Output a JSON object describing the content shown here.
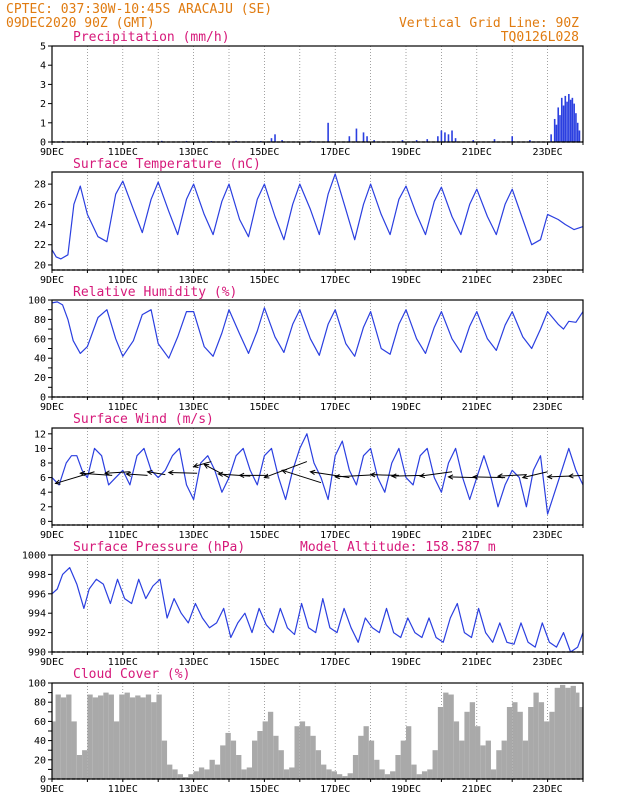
{
  "header": {
    "line1": "CPTEC:  037:30W-10:45S  ARACAJU (SE)",
    "line2": "09DEC2020 90Z (GMT)",
    "grid_note": "Vertical Grid Line: 90Z",
    "run_id": "TQ0126L028"
  },
  "colors": {
    "header": "#e07b10",
    "panel_title": "#d6197a",
    "series": "#2b3fe0",
    "wind_arrow": "#000000",
    "cloud_fill": "#a9a9a9"
  },
  "chart_data": [
    {
      "id": "precip",
      "type": "bar",
      "title": "Precipitation (mm/h)",
      "ylim": [
        0,
        5
      ],
      "yticks": [
        0,
        1,
        2,
        3,
        4,
        5
      ],
      "x_start": 0,
      "x_end": 15,
      "x_tick_days": [
        0,
        2,
        4,
        6,
        8,
        10,
        12,
        14
      ],
      "x_tick_labels": [
        "9DEC",
        "11DEC",
        "13DEC",
        "15DEC",
        "17DEC",
        "19DEC",
        "21DEC",
        "23DEC"
      ],
      "bars": [
        [
          0.3,
          0.05
        ],
        [
          0.9,
          0.04
        ],
        [
          1.6,
          0.05
        ],
        [
          2.4,
          0.04
        ],
        [
          3.1,
          0.06
        ],
        [
          3.8,
          0.05
        ],
        [
          4.5,
          0.05
        ],
        [
          5.2,
          0.06
        ],
        [
          5.9,
          0.05
        ],
        [
          6.2,
          0.2
        ],
        [
          6.3,
          0.4
        ],
        [
          6.5,
          0.1
        ],
        [
          7.3,
          0.06
        ],
        [
          7.8,
          1.0
        ],
        [
          8.4,
          0.3
        ],
        [
          8.6,
          0.7
        ],
        [
          8.8,
          0.5
        ],
        [
          8.9,
          0.3
        ],
        [
          9.1,
          0.1
        ],
        [
          9.9,
          0.1
        ],
        [
          10.3,
          0.1
        ],
        [
          10.6,
          0.15
        ],
        [
          10.9,
          0.3
        ],
        [
          11.0,
          0.6
        ],
        [
          11.1,
          0.5
        ],
        [
          11.2,
          0.4
        ],
        [
          11.3,
          0.6
        ],
        [
          11.4,
          0.2
        ],
        [
          11.9,
          0.1
        ],
        [
          12.5,
          0.15
        ],
        [
          13.0,
          0.3
        ],
        [
          13.5,
          0.1
        ],
        [
          14.1,
          0.4
        ],
        [
          14.2,
          1.2
        ],
        [
          14.25,
          0.9
        ],
        [
          14.3,
          1.8
        ],
        [
          14.35,
          1.4
        ],
        [
          14.4,
          2.3
        ],
        [
          14.45,
          1.9
        ],
        [
          14.5,
          2.4
        ],
        [
          14.55,
          2.1
        ],
        [
          14.6,
          2.5
        ],
        [
          14.65,
          2.2
        ],
        [
          14.7,
          2.3
        ],
        [
          14.75,
          2.0
        ],
        [
          14.8,
          1.5
        ],
        [
          14.85,
          1.0
        ],
        [
          14.9,
          0.6
        ]
      ]
    },
    {
      "id": "temp",
      "type": "line",
      "title": "Surface Temperature (nC)",
      "ylim": [
        19.5,
        29.2
      ],
      "yticks": [
        20,
        22,
        24,
        26,
        28
      ],
      "x_start": 0,
      "x_end": 15,
      "x_tick_days": [
        0,
        2,
        4,
        6,
        8,
        10,
        12,
        14
      ],
      "x_tick_labels": [
        "9DEC",
        "11DEC",
        "13DEC",
        "15DEC",
        "17DEC",
        "19DEC",
        "21DEC",
        "23DEC"
      ],
      "x": [
        0,
        0.12,
        0.25,
        0.45,
        0.62,
        0.8,
        1.0,
        1.3,
        1.55,
        1.8,
        2.0,
        2.3,
        2.55,
        2.8,
        3.0,
        3.3,
        3.55,
        3.8,
        4.0,
        4.3,
        4.55,
        4.8,
        5.0,
        5.3,
        5.55,
        5.8,
        6.0,
        6.3,
        6.55,
        6.8,
        7.0,
        7.3,
        7.55,
        7.8,
        8.0,
        8.3,
        8.55,
        8.8,
        9.0,
        9.3,
        9.55,
        9.8,
        10.0,
        10.3,
        10.55,
        10.8,
        11.0,
        11.3,
        11.55,
        11.8,
        12.0,
        12.3,
        12.55,
        12.8,
        13.0,
        13.3,
        13.55,
        13.8,
        14.0,
        14.3,
        14.5,
        14.75,
        15.0
      ],
      "y": [
        21.5,
        20.8,
        20.6,
        21.0,
        26.0,
        27.8,
        25.0,
        22.8,
        22.3,
        27.0,
        28.3,
        25.5,
        23.2,
        26.5,
        28.2,
        25.3,
        23.0,
        26.5,
        28.0,
        25.0,
        23.0,
        26.3,
        28.0,
        24.5,
        22.8,
        26.5,
        28.0,
        24.8,
        22.5,
        26.0,
        28.0,
        25.5,
        23.0,
        27.0,
        29.0,
        25.5,
        22.5,
        26.0,
        28.0,
        25.0,
        23.0,
        26.5,
        27.8,
        25.0,
        23.0,
        26.3,
        27.7,
        24.8,
        23.0,
        26.0,
        27.5,
        24.8,
        23.0,
        26.0,
        27.5,
        24.5,
        22.0,
        22.5,
        25.0,
        24.5,
        24.0,
        23.5,
        23.8
      ]
    },
    {
      "id": "rh",
      "type": "line",
      "title": "Relative Humidity (%)",
      "ylim": [
        0,
        100
      ],
      "yticks": [
        0,
        10,
        20,
        30,
        40,
        50,
        60,
        70,
        80,
        90,
        100
      ],
      "ytick_labels_shown": [
        0,
        20,
        40,
        60,
        80,
        100
      ],
      "x_start": 0,
      "x_end": 15,
      "x_tick_days": [
        0,
        2,
        4,
        6,
        8,
        10,
        12,
        14
      ],
      "x_tick_labels": [
        "9DEC",
        "11DEC",
        "13DEC",
        "15DEC",
        "17DEC",
        "19DEC",
        "21DEC",
        "23DEC"
      ],
      "x": [
        0,
        0.15,
        0.3,
        0.45,
        0.6,
        0.8,
        1.0,
        1.3,
        1.55,
        1.8,
        2.0,
        2.3,
        2.55,
        2.8,
        3.0,
        3.3,
        3.55,
        3.8,
        4.0,
        4.3,
        4.55,
        4.8,
        5.0,
        5.3,
        5.55,
        5.8,
        6.0,
        6.3,
        6.55,
        6.8,
        7.0,
        7.3,
        7.55,
        7.8,
        8.0,
        8.3,
        8.55,
        8.8,
        9.0,
        9.3,
        9.55,
        9.8,
        10.0,
        10.3,
        10.55,
        10.8,
        11.0,
        11.3,
        11.55,
        11.8,
        12.0,
        12.3,
        12.55,
        12.8,
        13.0,
        13.3,
        13.55,
        13.8,
        14.0,
        14.3,
        14.45,
        14.6,
        14.8,
        15.0
      ],
      "y": [
        97,
        98,
        95,
        80,
        58,
        45,
        52,
        82,
        90,
        60,
        42,
        58,
        85,
        90,
        55,
        40,
        62,
        88,
        88,
        52,
        42,
        66,
        90,
        65,
        45,
        68,
        92,
        62,
        46,
        75,
        90,
        60,
        43,
        75,
        90,
        55,
        42,
        72,
        88,
        50,
        44,
        75,
        90,
        60,
        45,
        72,
        88,
        60,
        46,
        73,
        88,
        60,
        48,
        74,
        88,
        62,
        50,
        70,
        88,
        75,
        70,
        78,
        77,
        88
      ]
    },
    {
      "id": "wind",
      "type": "line",
      "title": "Surface Wind (m/s)",
      "ylim": [
        -0.5,
        12.8
      ],
      "yticks": [
        0,
        2,
        4,
        6,
        8,
        10,
        12
      ],
      "x_start": 0,
      "x_end": 15,
      "x_tick_days": [
        0,
        2,
        4,
        6,
        8,
        10,
        12,
        14
      ],
      "x_tick_labels": [
        "9DEC",
        "11DEC",
        "13DEC",
        "15DEC",
        "17DEC",
        "19DEC",
        "21DEC",
        "23DEC"
      ],
      "x": [
        0,
        0.2,
        0.4,
        0.55,
        0.7,
        0.85,
        1.0,
        1.2,
        1.4,
        1.6,
        1.8,
        2.0,
        2.2,
        2.4,
        2.6,
        2.8,
        3.0,
        3.2,
        3.4,
        3.6,
        3.8,
        4.0,
        4.2,
        4.4,
        4.6,
        4.8,
        5.0,
        5.2,
        5.4,
        5.6,
        5.8,
        6.0,
        6.2,
        6.4,
        6.6,
        6.8,
        7.0,
        7.2,
        7.4,
        7.6,
        7.8,
        8.0,
        8.2,
        8.4,
        8.6,
        8.8,
        9.0,
        9.2,
        9.4,
        9.6,
        9.8,
        10.0,
        10.2,
        10.4,
        10.6,
        10.8,
        11.0,
        11.2,
        11.4,
        11.6,
        11.8,
        12.0,
        12.2,
        12.4,
        12.6,
        12.8,
        13.0,
        13.2,
        13.4,
        13.6,
        13.8,
        14.0,
        14.2,
        14.4,
        14.6,
        14.8,
        15.0
      ],
      "y": [
        6,
        5,
        8,
        9,
        9,
        7,
        6,
        10,
        9,
        5,
        6,
        7,
        5,
        9,
        10,
        7,
        6,
        7,
        9,
        10,
        5,
        3,
        8,
        9,
        7,
        4,
        6,
        9,
        10,
        7,
        5,
        9,
        10,
        6,
        3,
        7,
        10,
        12,
        8,
        6,
        3,
        9,
        11,
        7,
        5,
        9,
        10,
        6,
        4,
        8,
        10,
        6,
        5,
        9,
        10,
        6,
        4,
        8,
        10,
        6,
        3,
        6,
        9,
        6,
        2,
        5,
        7,
        6,
        2,
        7,
        9,
        1,
        4,
        7,
        10,
        7,
        5
      ],
      "arrows": [
        [
          0.1,
          5.2,
          1.2,
          6.8
        ],
        [
          0.8,
          6.6,
          1.7,
          6.3
        ],
        [
          1.5,
          6.6,
          2.2,
          6.8
        ],
        [
          2.1,
          6.5,
          2.7,
          6.3
        ],
        [
          2.7,
          6.8,
          3.2,
          6.4
        ],
        [
          3.3,
          6.7,
          4.1,
          6.6
        ],
        [
          4.0,
          7.5,
          4.5,
          8.2
        ],
        [
          4.3,
          7.8,
          5.0,
          6.0
        ],
        [
          4.7,
          6.5,
          5.6,
          6.2
        ],
        [
          5.3,
          6.3,
          6.1,
          6.3
        ],
        [
          6.0,
          6.0,
          7.2,
          8.2
        ],
        [
          6.5,
          7.0,
          7.6,
          5.3
        ],
        [
          7.3,
          6.8,
          8.4,
          6.0
        ],
        [
          8.0,
          6.1,
          9.2,
          6.4
        ],
        [
          9.0,
          6.4,
          9.8,
          6.3
        ],
        [
          9.6,
          6.2,
          10.5,
          6.3
        ],
        [
          10.4,
          6.2,
          11.3,
          6.8
        ],
        [
          11.2,
          6.1,
          12.0,
          6.0
        ],
        [
          11.9,
          6.1,
          12.8,
          6.0
        ],
        [
          12.6,
          6.2,
          13.4,
          6.4
        ],
        [
          13.3,
          6.0,
          14.0,
          6.8
        ],
        [
          14.0,
          6.1,
          14.6,
          6.2
        ],
        [
          14.6,
          6.2,
          15.0,
          6.3
        ]
      ]
    },
    {
      "id": "pressure",
      "type": "line",
      "title": "Surface Pressure (hPa)",
      "subtitle": "Model Altitude: 158.587 m",
      "ylim": [
        990,
        1000
      ],
      "yticks": [
        990,
        992,
        994,
        996,
        998,
        1000
      ],
      "x_start": 0,
      "x_end": 15,
      "x_tick_days": [
        0,
        2,
        4,
        6,
        8,
        10,
        12,
        14
      ],
      "x_tick_labels": [
        "9DEC",
        "11DEC",
        "13DEC",
        "15DEC",
        "17DEC",
        "19DEC",
        "21DEC",
        "23DEC"
      ],
      "x": [
        0,
        0.15,
        0.3,
        0.5,
        0.7,
        0.9,
        1.05,
        1.25,
        1.45,
        1.65,
        1.85,
        2.05,
        2.25,
        2.45,
        2.65,
        2.85,
        3.05,
        3.25,
        3.45,
        3.65,
        3.85,
        4.05,
        4.25,
        4.45,
        4.65,
        4.85,
        5.05,
        5.25,
        5.45,
        5.65,
        5.85,
        6.05,
        6.25,
        6.45,
        6.65,
        6.85,
        7.05,
        7.25,
        7.45,
        7.65,
        7.85,
        8.05,
        8.25,
        8.45,
        8.65,
        8.85,
        9.05,
        9.25,
        9.45,
        9.65,
        9.85,
        10.05,
        10.25,
        10.45,
        10.65,
        10.85,
        11.05,
        11.25,
        11.45,
        11.65,
        11.85,
        12.05,
        12.25,
        12.45,
        12.65,
        12.85,
        13.05,
        13.25,
        13.45,
        13.65,
        13.85,
        14.05,
        14.25,
        14.45,
        14.65,
        14.85,
        15.0
      ],
      "y": [
        996,
        996.5,
        998.0,
        998.7,
        997.0,
        994.5,
        996.5,
        997.5,
        997.0,
        995.0,
        997.5,
        995.5,
        995.0,
        997.5,
        995.5,
        996.8,
        997.5,
        993.5,
        995.5,
        994.0,
        993.0,
        995.0,
        993.5,
        992.5,
        993.0,
        994.5,
        991.5,
        993.0,
        994.0,
        992.0,
        994.5,
        992.8,
        992.0,
        994.5,
        992.5,
        991.8,
        995.0,
        992.5,
        992.0,
        995.5,
        992.5,
        992.0,
        994.5,
        992.5,
        991.0,
        993.5,
        992.5,
        992.0,
        994.5,
        992.0,
        991.5,
        993.5,
        992.0,
        991.5,
        993.5,
        991.5,
        991.0,
        993.5,
        995.0,
        992.0,
        991.5,
        994.5,
        992.0,
        991.0,
        993.0,
        991.0,
        990.8,
        993.0,
        991.0,
        990.5,
        993.0,
        991.0,
        990.5,
        992.0,
        990.0,
        990.5,
        992.0
      ]
    },
    {
      "id": "cloud",
      "type": "area",
      "title": "Cloud Cover (%)",
      "ylim": [
        0,
        100
      ],
      "yticks": [
        0,
        10,
        20,
        30,
        40,
        50,
        60,
        70,
        80,
        90,
        100
      ],
      "ytick_labels_shown": [
        0,
        20,
        40,
        60,
        80,
        100
      ],
      "x_start": 0,
      "x_end": 15,
      "x_tick_days": [
        0,
        2,
        4,
        6,
        8,
        10,
        12,
        14
      ],
      "x_tick_labels": [
        "9DEC",
        "11DEC",
        "13DEC",
        "15DEC",
        "17DEC",
        "19DEC",
        "21DEC",
        "23DEC"
      ],
      "x": [
        0,
        0.1,
        0.25,
        0.4,
        0.55,
        0.7,
        0.85,
        1.0,
        1.15,
        1.3,
        1.45,
        1.6,
        1.75,
        1.9,
        2.05,
        2.2,
        2.35,
        2.5,
        2.65,
        2.8,
        2.95,
        3.1,
        3.25,
        3.4,
        3.55,
        3.7,
        3.85,
        4.0,
        4.15,
        4.3,
        4.45,
        4.6,
        4.75,
        4.9,
        5.05,
        5.2,
        5.35,
        5.5,
        5.65,
        5.8,
        5.95,
        6.1,
        6.25,
        6.4,
        6.55,
        6.7,
        6.85,
        7.0,
        7.15,
        7.3,
        7.45,
        7.6,
        7.75,
        7.9,
        8.05,
        8.2,
        8.35,
        8.5,
        8.65,
        8.8,
        8.95,
        9.1,
        9.25,
        9.4,
        9.55,
        9.7,
        9.85,
        10.0,
        10.15,
        10.3,
        10.45,
        10.6,
        10.75,
        10.9,
        11.05,
        11.2,
        11.35,
        11.5,
        11.65,
        11.8,
        11.95,
        12.1,
        12.25,
        12.4,
        12.55,
        12.7,
        12.85,
        13.0,
        13.15,
        13.3,
        13.45,
        13.6,
        13.75,
        13.9,
        14.05,
        14.2,
        14.35,
        14.5,
        14.65,
        14.8,
        14.9,
        15.0
      ],
      "y": [
        60,
        88,
        85,
        88,
        60,
        25,
        30,
        88,
        85,
        87,
        90,
        88,
        60,
        88,
        90,
        85,
        87,
        85,
        88,
        80,
        88,
        40,
        15,
        10,
        5,
        2,
        5,
        8,
        12,
        10,
        20,
        15,
        35,
        48,
        40,
        25,
        10,
        12,
        40,
        50,
        60,
        70,
        45,
        30,
        10,
        12,
        55,
        60,
        55,
        45,
        30,
        15,
        10,
        8,
        5,
        3,
        6,
        25,
        45,
        55,
        40,
        20,
        10,
        5,
        8,
        25,
        40,
        55,
        15,
        5,
        8,
        10,
        30,
        75,
        90,
        88,
        60,
        40,
        70,
        80,
        55,
        35,
        40,
        10,
        30,
        40,
        75,
        80,
        70,
        40,
        75,
        90,
        80,
        60,
        70,
        95,
        98,
        95,
        97,
        90,
        75,
        70
      ]
    }
  ]
}
